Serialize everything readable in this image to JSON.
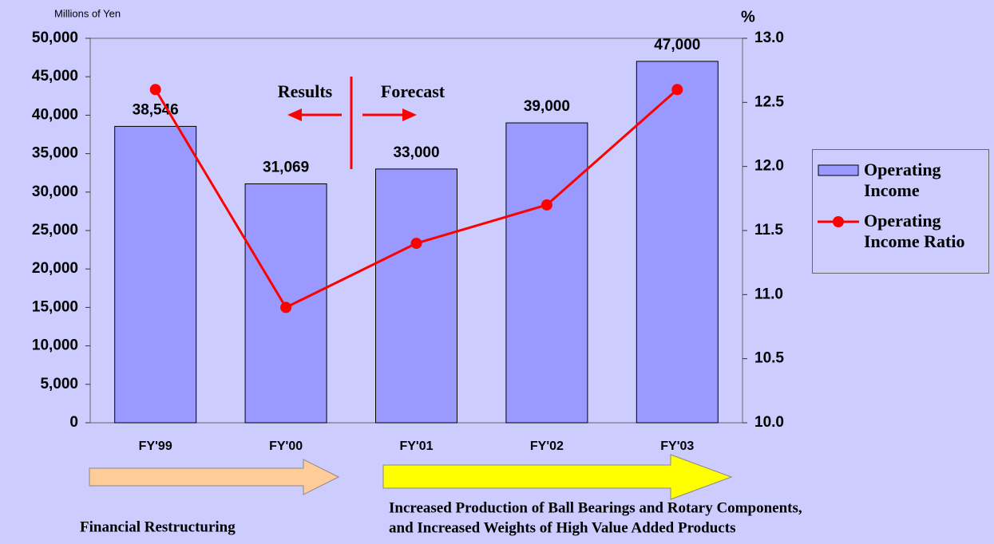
{
  "chart_data": {
    "type": "bar",
    "y_axis_label": "Millions of Yen",
    "y2_axis_label": "%",
    "categories": [
      "FY'99",
      "FY'00",
      "FY'01",
      "FY'02",
      "FY'03"
    ],
    "series": [
      {
        "name": "Operating Income",
        "color": "#9999ff",
        "values": [
          38546,
          31069,
          33000,
          39000,
          47000
        ],
        "value_labels": [
          "38,546",
          "31,069",
          "33,000",
          "39,000",
          "47,000"
        ]
      },
      {
        "name": "Operating Income Ratio",
        "color": "#ff0000",
        "type": "line",
        "axis": "y2",
        "values": [
          12.6,
          10.9,
          11.4,
          11.7,
          12.6
        ]
      }
    ],
    "ylim": [
      0,
      50000
    ],
    "yticks": [
      0,
      {
        "value": 5000,
        "label": "5,000"
      },
      {
        "value": 10000,
        "label": "10,000"
      },
      {
        "value": 15000,
        "label": "15,000"
      },
      {
        "value": 20000,
        "label": "20,000"
      },
      {
        "value": 25000,
        "label": "25,000"
      },
      {
        "value": 30000,
        "label": "30,000"
      },
      {
        "value": 35000,
        "label": "35,000"
      },
      {
        "value": 40000,
        "label": "40,000"
      },
      {
        "value": 45000,
        "label": "45,000"
      },
      {
        "value": 50000,
        "label": "50,000"
      }
    ],
    "y2lim": [
      10,
      13
    ],
    "y2ticks": [
      {
        "value": 10,
        "label": "10.0"
      },
      {
        "value": 10.5,
        "label": "10.5"
      },
      {
        "value": 11,
        "label": "11.0"
      },
      {
        "value": 11.5,
        "label": "11.5"
      },
      {
        "value": 12,
        "label": "12.0"
      },
      {
        "value": 12.5,
        "label": "12.5"
      },
      {
        "value": 13,
        "label": "13.0"
      }
    ],
    "legend": "right",
    "annotations": {
      "results": "Results",
      "forecast": "Forecast",
      "left_phase": "Financial Restructuring",
      "right_phase": [
        "Increased Production of Ball Bearings and Rotary Components,",
        "and Increased Weights of High Value Added Products"
      ]
    }
  }
}
